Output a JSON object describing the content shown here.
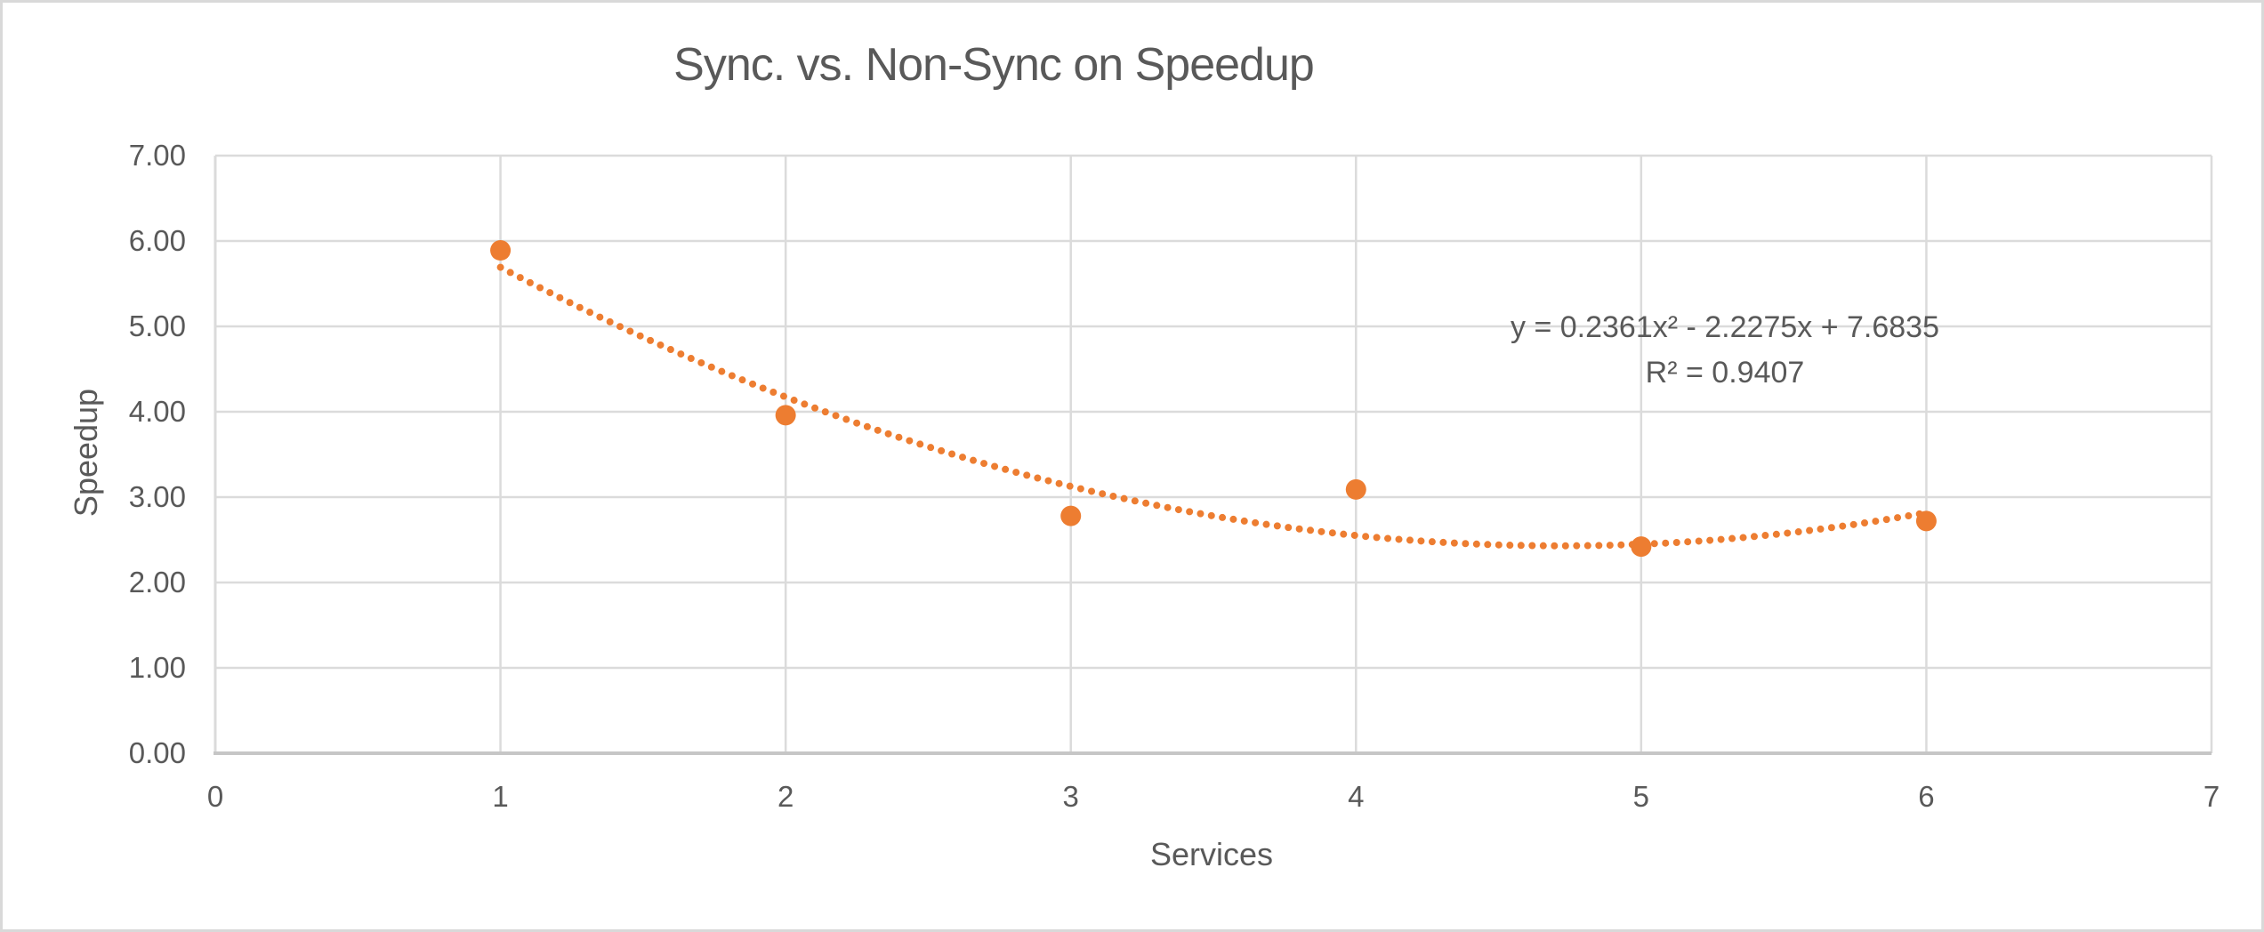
{
  "chart_data": {
    "type": "scatter",
    "title": "Sync. vs. Non-Sync on Speedup",
    "xlabel": "Services",
    "ylabel": "Speedup",
    "xlim": [
      0,
      7
    ],
    "ylim": [
      0,
      7
    ],
    "grid": true,
    "legend": "none",
    "x_ticks": [
      0,
      1,
      2,
      3,
      4,
      5,
      6,
      7
    ],
    "x_tick_labels": [
      "0",
      "1",
      "2",
      "3",
      "4",
      "5",
      "6",
      "7"
    ],
    "y_ticks": [
      0,
      1,
      2,
      3,
      4,
      5,
      6,
      7
    ],
    "y_tick_labels": [
      "0.00",
      "1.00",
      "2.00",
      "3.00",
      "4.00",
      "5.00",
      "6.00",
      "7.00"
    ],
    "series": [
      {
        "name": "Speedup",
        "marker": "circle",
        "color": "#ED7D31",
        "points": [
          {
            "x": 1,
            "y": 5.89
          },
          {
            "x": 2,
            "y": 3.96
          },
          {
            "x": 3,
            "y": 2.78
          },
          {
            "x": 4,
            "y": 3.09
          },
          {
            "x": 5,
            "y": 2.42
          },
          {
            "x": 6,
            "y": 2.72
          }
        ]
      }
    ],
    "trendline": {
      "kind": "polynomial",
      "order": 2,
      "coefficients": {
        "a": 0.2361,
        "b": -2.2275,
        "c": 7.6835
      },
      "x_range": [
        1,
        6
      ],
      "style": "dotted",
      "color": "#ED7D31",
      "equation_text": "y = 0.2361x² - 2.2275x + 7.6835",
      "r_squared_text": "R² = 0.9407",
      "r_squared_value": 0.9407
    },
    "colors": {
      "accent": "#ED7D31",
      "gridline": "#DBDBDB",
      "axis_line": "#C6C6C6",
      "text": "#595959",
      "frame_border": "#D9D9D9",
      "background": "#FFFFFF"
    }
  }
}
